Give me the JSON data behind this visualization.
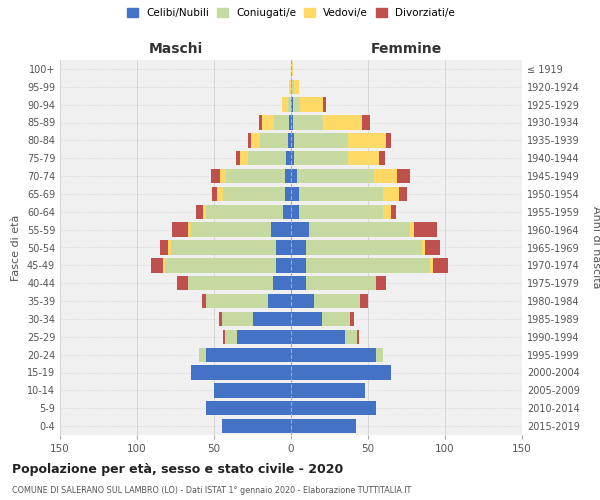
{
  "age_groups": [
    "0-4",
    "5-9",
    "10-14",
    "15-19",
    "20-24",
    "25-29",
    "30-34",
    "35-39",
    "40-44",
    "45-49",
    "50-54",
    "55-59",
    "60-64",
    "65-69",
    "70-74",
    "75-79",
    "80-84",
    "85-89",
    "90-94",
    "95-99",
    "100+"
  ],
  "birth_years": [
    "2015-2019",
    "2010-2014",
    "2005-2009",
    "2000-2004",
    "1995-1999",
    "1990-1994",
    "1985-1989",
    "1980-1984",
    "1975-1979",
    "1970-1974",
    "1965-1969",
    "1960-1964",
    "1955-1959",
    "1950-1954",
    "1945-1949",
    "1940-1944",
    "1935-1939",
    "1930-1934",
    "1925-1929",
    "1920-1924",
    "≤ 1919"
  ],
  "male": {
    "celibe": [
      45,
      55,
      50,
      65,
      55,
      35,
      25,
      15,
      12,
      10,
      10,
      13,
      5,
      4,
      4,
      3,
      2,
      1,
      0,
      0,
      0
    ],
    "coniugato": [
      0,
      0,
      0,
      0,
      5,
      8,
      20,
      40,
      55,
      72,
      68,
      52,
      50,
      40,
      38,
      25,
      18,
      10,
      2,
      0,
      0
    ],
    "vedovo": [
      0,
      0,
      0,
      0,
      0,
      0,
      0,
      0,
      0,
      1,
      2,
      2,
      2,
      4,
      4,
      5,
      6,
      8,
      4,
      1,
      0
    ],
    "divorziato": [
      0,
      0,
      0,
      0,
      0,
      1,
      2,
      3,
      7,
      8,
      5,
      10,
      5,
      3,
      6,
      3,
      2,
      2,
      0,
      0,
      0
    ]
  },
  "female": {
    "nubile": [
      42,
      55,
      48,
      65,
      55,
      35,
      20,
      15,
      10,
      10,
      10,
      12,
      5,
      5,
      4,
      2,
      2,
      1,
      1,
      0,
      0
    ],
    "coniugata": [
      0,
      0,
      0,
      0,
      5,
      8,
      18,
      30,
      45,
      80,
      75,
      65,
      55,
      55,
      50,
      35,
      35,
      20,
      5,
      2,
      0
    ],
    "vedova": [
      0,
      0,
      0,
      0,
      0,
      0,
      0,
      0,
      0,
      2,
      2,
      3,
      5,
      10,
      15,
      20,
      25,
      25,
      15,
      3,
      1
    ],
    "divorziata": [
      0,
      0,
      0,
      0,
      0,
      1,
      3,
      5,
      7,
      10,
      10,
      15,
      3,
      5,
      8,
      4,
      3,
      5,
      2,
      0,
      0
    ]
  },
  "colors": {
    "celibe_nubile": "#4472C4",
    "coniugato": "#C5D9A0",
    "vedovo": "#FFD966",
    "divorziato": "#C0504D"
  },
  "xlim": 150,
  "title": "Popolazione per età, sesso e stato civile - 2020",
  "subtitle": "COMUNE DI SALERANO SUL LAMBRO (LO) - Dati ISTAT 1° gennaio 2020 - Elaborazione TUTTITALIA.IT",
  "xlabel_left": "Maschi",
  "xlabel_right": "Femmine",
  "ylabel_left": "Fasce di età",
  "ylabel_right": "Anni di nascita",
  "legend_labels": [
    "Celibi/Nubili",
    "Coniugati/e",
    "Vedovi/e",
    "Divorziati/e"
  ],
  "bg_color": "#f0f0f0",
  "grid_color": "#cccccc"
}
